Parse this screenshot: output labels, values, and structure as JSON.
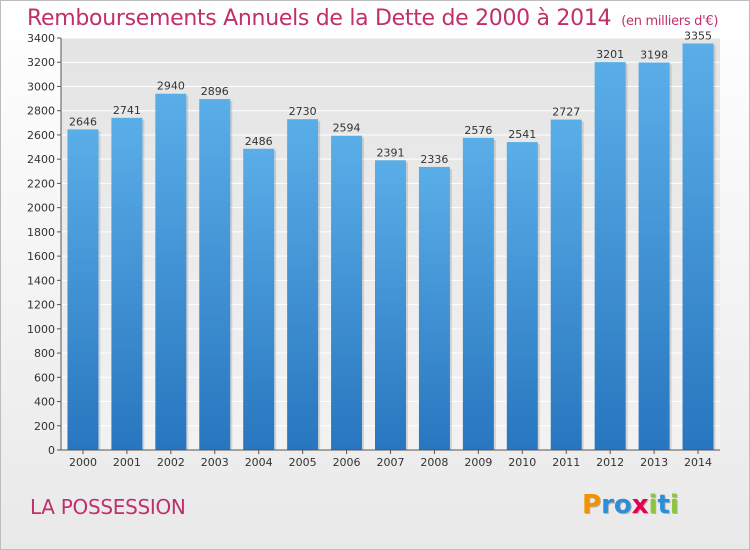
{
  "header": {
    "title": "Remboursements Annuels de la Dette de 2000 à 2014",
    "subtitle": "(en milliers d'€)"
  },
  "footer": {
    "commune": "LA POSSESSION",
    "logo_text": "Proxiti",
    "logo_colors": [
      "#f39200",
      "#2a8fd8",
      "#2a8fd8",
      "#e3004f",
      "#8cc63f",
      "#2a8fd8",
      "#8cc63f"
    ]
  },
  "chart_data": {
    "type": "bar",
    "title": "Remboursements Annuels de la Dette de 2000 à 2014",
    "subtitle": "(en milliers d'€)",
    "categories": [
      "2000",
      "2001",
      "2002",
      "2003",
      "2004",
      "2005",
      "2006",
      "2007",
      "2008",
      "2009",
      "2010",
      "2011",
      "2012",
      "2013",
      "2014"
    ],
    "values": [
      2646,
      2741,
      2940,
      2896,
      2486,
      2730,
      2594,
      2391,
      2336,
      2576,
      2541,
      2727,
      3201,
      3198,
      3355
    ],
    "ylim": [
      0,
      3400
    ],
    "yticks": [
      0,
      200,
      400,
      600,
      800,
      1000,
      1200,
      1400,
      1600,
      1800,
      2000,
      2200,
      2400,
      2600,
      2800,
      3000,
      3200,
      3400
    ],
    "grid": true,
    "bar_color": "#3d94d8"
  }
}
